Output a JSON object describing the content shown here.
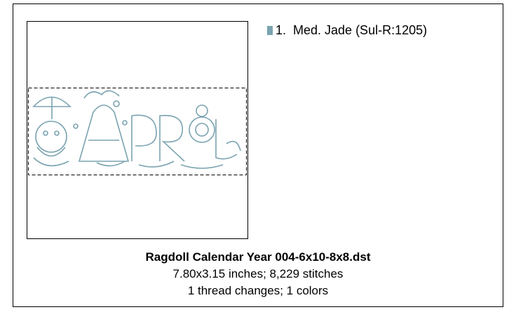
{
  "threads": [
    {
      "number": "1.",
      "name": "Med. Jade (Sul-R:1205)",
      "color": "#7aa3b0"
    }
  ],
  "design": {
    "file_name": "Ragdoll Calendar Year 004-6x10-8x8.dst",
    "size_stitches": "7.80x3.15 inches; 8,229 stitches",
    "changes_colors": "1 thread changes; 1 colors"
  }
}
